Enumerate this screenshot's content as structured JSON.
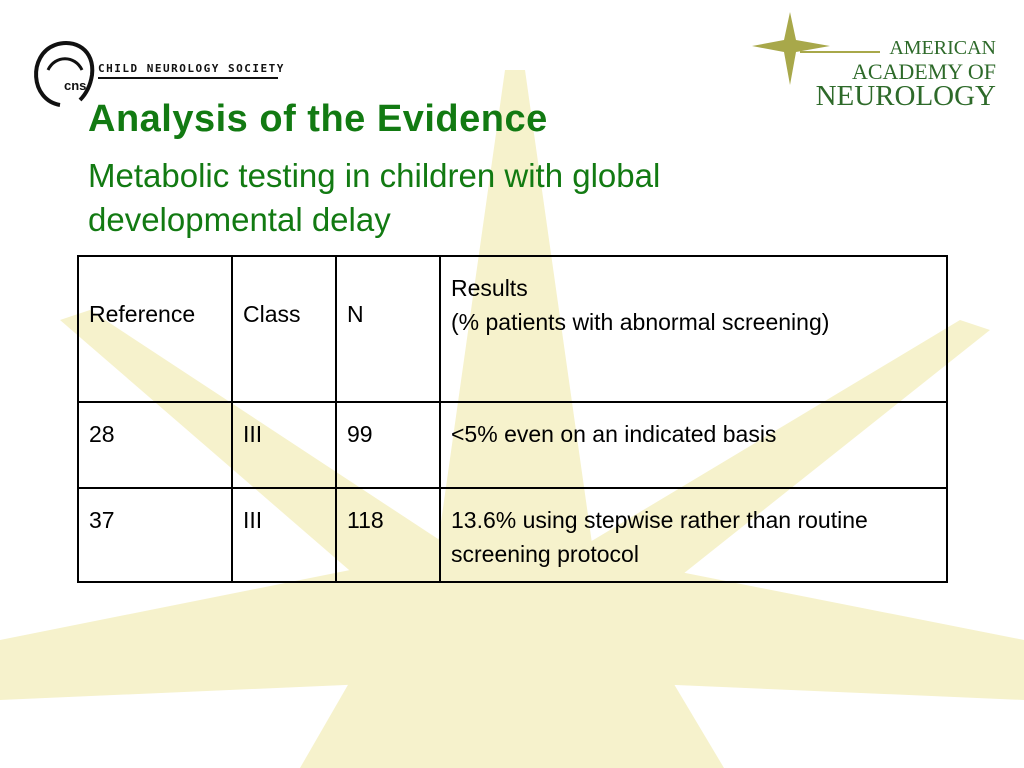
{
  "logos": {
    "left": {
      "initials": "cns",
      "name": "CHILD NEUROLOGY SOCIETY"
    },
    "right": {
      "lines": [
        "AMERICAN",
        "ACADEMY OF",
        "NEUROLOGY"
      ]
    }
  },
  "title": "Analysis of the Evidence",
  "subtitle": "Metabolic testing in children with global developmental delay",
  "table": {
    "header": [
      "Reference",
      "Class",
      "N",
      [
        "Results",
        "(% patients with abnormal screening)"
      ]
    ],
    "rows": [
      [
        "28",
        "III",
        "99",
        "<5% even on an indicated basis"
      ],
      [
        "37",
        "III",
        "118",
        "13.6% using stepwise rather than routine screening protocol"
      ]
    ]
  }
}
